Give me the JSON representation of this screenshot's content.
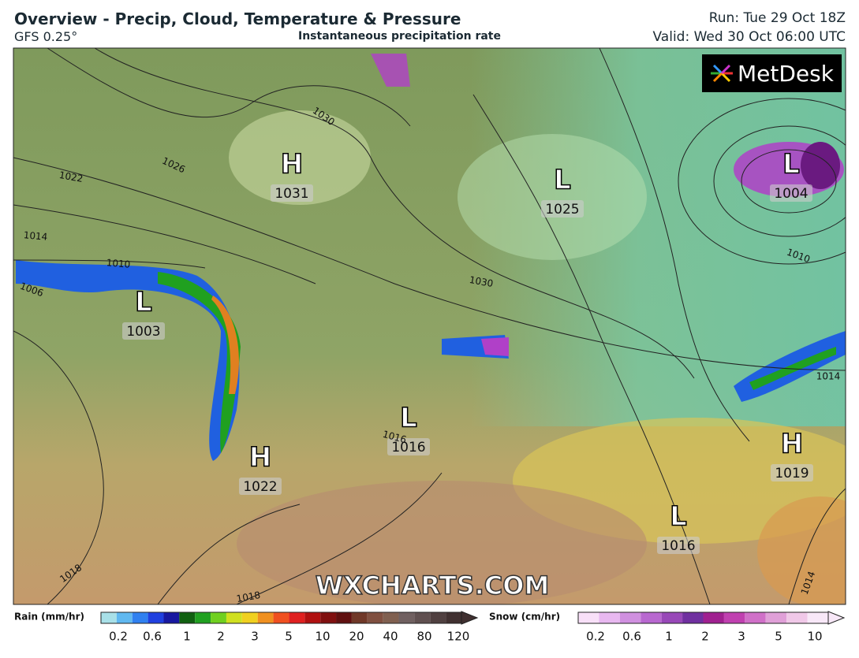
{
  "header": {
    "title": "Overview - Precip, Cloud, Temperature & Pressure",
    "model": "GFS 0.25°",
    "subtitle": "Instantaneous precipitation rate",
    "run": "Run: Tue 29 Oct 18Z",
    "valid": "Valid: Wed 30 Oct 06:00 UTC"
  },
  "logo": "MetDesk",
  "watermark": "WXCHARTS.COM",
  "pressure_centers": [
    {
      "type": "H",
      "value": "1031"
    },
    {
      "type": "L",
      "value": "1025"
    },
    {
      "type": "L",
      "value": "1004"
    },
    {
      "type": "L",
      "value": "1003"
    },
    {
      "type": "L",
      "value": "1016"
    },
    {
      "type": "H",
      "value": "1022"
    },
    {
      "type": "H",
      "value": "1019"
    },
    {
      "type": "L",
      "value": "1016"
    }
  ],
  "isobar_labels": [
    "1030",
    "1026",
    "1022",
    "1014",
    "1010",
    "1006",
    "1030",
    "1010",
    "1014",
    "1018",
    "1018",
    "1014",
    "1016"
  ],
  "legend": {
    "rain": {
      "title": "Rain (mm/hr)",
      "ticks": [
        "0.2",
        "0.6",
        "1",
        "2",
        "3",
        "5",
        "10",
        "20",
        "40",
        "80",
        "120"
      ]
    },
    "snow": {
      "title": "Snow (cm/hr)",
      "ticks": [
        "0.2",
        "0.6",
        "1",
        "2",
        "3",
        "5",
        "10"
      ]
    }
  }
}
